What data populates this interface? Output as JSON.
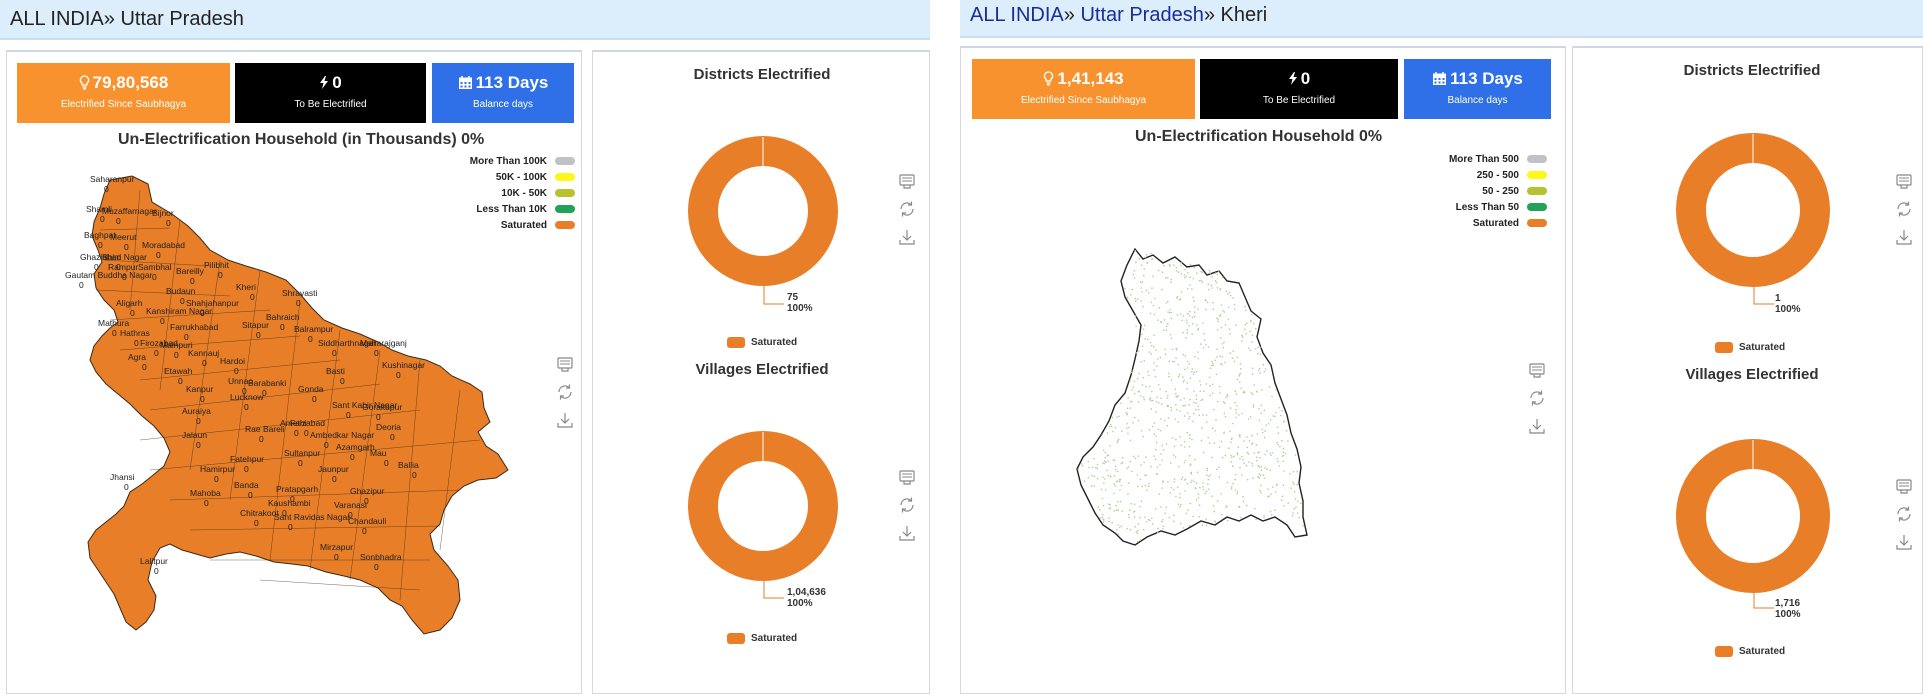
{
  "colors": {
    "orange": "#f7922e",
    "black": "#000000",
    "blue": "#2f6fe8",
    "saturated": "#e87e27",
    "more_than_high": "#c0c2c7",
    "tier2": "#fdf71a",
    "tier3": "#b6c230",
    "tier4": "#21a25a"
  },
  "left": {
    "breadcrumb": {
      "root": "ALL INDIA",
      "sep": "»",
      "state": "Uttar Pradesh"
    },
    "tiles": {
      "electrified": {
        "value": "79,80,568",
        "label": "Electrified Since Saubhagya",
        "icon": "bulb-icon"
      },
      "to_be": {
        "value": "0",
        "label": "To Be Electrified",
        "icon": "bolt-icon"
      },
      "balance": {
        "value": "113 Days",
        "label": "Balance days",
        "icon": "calendar-icon"
      }
    },
    "map_title": "Un-Electrification Household  (in Thousands) 0%",
    "legend": [
      "More Than 100K",
      "50K - 100K",
      "10K - 50K",
      "Less Than 10K",
      "Saturated"
    ],
    "districts": {
      "title": "Districts Electrified",
      "value": "75",
      "percent": "100%",
      "legend": "Saturated"
    },
    "villages": {
      "title": "Villages Electrified",
      "value": "1,04,636",
      "percent": "100%",
      "legend": "Saturated"
    },
    "map_labels": [
      "Saharanpur",
      "Shamli",
      "Muzaffarnagar",
      "Bijnor",
      "Baghpat",
      "Meerut",
      "Moradabad",
      "Ghaziabad",
      "Bhim Nagar",
      "Gautam Buddha Nagar",
      "Rampur",
      "Sambhal",
      "Bareilly",
      "Pilibhit",
      "Kheri",
      "Budaun",
      "Shahjahanpur",
      "Aligarh",
      "Kanshiram Nagar",
      "Bahraich",
      "Shravasti",
      "Mathura",
      "Hathras",
      "Farrukhabad",
      "Sitapur",
      "Balrampur",
      "Agra",
      "Firozabad",
      "Mainpuri",
      "Hardoi",
      "Kannauj",
      "Siddharthnagar",
      "Maharajganj",
      "Kushinagar",
      "Etawah",
      "Barabanki",
      "Gonda",
      "Lucknow",
      "Unnao",
      "Kanpur",
      "Basti",
      "Sant Kabir Nagar",
      "Gorakhpur",
      "Deoria",
      "Auraiya",
      "Faizabad",
      "Ambedkar Nagar",
      "Jalaun",
      "Rae Bareli",
      "Amethi",
      "Azamgarh",
      "Mau",
      "Ballia",
      "Fatehpur",
      "Sultanpur",
      "Jaunpur",
      "Hamirpur",
      "Pratapgarh",
      "Ghazipur",
      "Jhansi",
      "Banda",
      "Kaushambi",
      "Varanasi",
      "Mahoba",
      "Chitrakoot",
      "Sant Ravidas Nagar",
      "Chandauli",
      "Mirzapur",
      "Lalitpur",
      "Sonbhadra"
    ],
    "map_zero": "0"
  },
  "right": {
    "breadcrumb": {
      "root": "ALL INDIA",
      "sep": "»",
      "state": "Uttar Pradesh",
      "district": "Kheri"
    },
    "tiles": {
      "electrified": {
        "value": "1,41,143",
        "label": "Electrified Since Saubhagya",
        "icon": "bulb-icon"
      },
      "to_be": {
        "value": "0",
        "label": "To Be Electrified",
        "icon": "bolt-icon"
      },
      "balance": {
        "value": "113 Days",
        "label": "Balance days",
        "icon": "calendar-icon"
      }
    },
    "map_title": "Un-Electrification Household  0%",
    "legend": [
      "More Than 500",
      "250 - 500",
      "50 - 250",
      "Less Than 50",
      "Saturated"
    ],
    "districts": {
      "title": "Districts Electrified",
      "value": "1",
      "percent": "100%",
      "legend": "Saturated"
    },
    "villages": {
      "title": "Villages Electrified",
      "value": "1,716",
      "percent": "100%",
      "legend": "Saturated"
    }
  }
}
